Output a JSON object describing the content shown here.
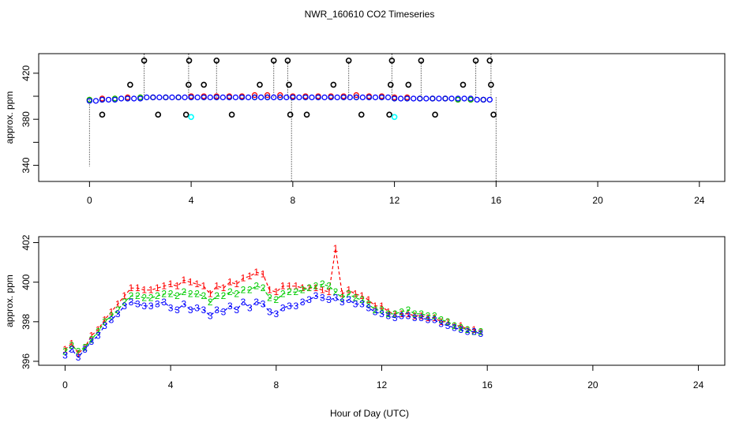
{
  "title": "NWR_160610  CO2 Timeseries",
  "xlabel": "Hour of Day (UTC)",
  "colors": {
    "s1": "#ff0000",
    "s2": "#00cc00",
    "s3": "#0000ff",
    "flag": "#000000",
    "cyan": "#00ffff"
  },
  "chart_data": [
    {
      "type": "scatter",
      "title": "",
      "xlabel": "",
      "ylabel": "approx. ppm",
      "xlim": [
        -2,
        25
      ],
      "ylim": [
        326,
        437
      ],
      "xticks": [
        0,
        4,
        8,
        12,
        16,
        20,
        24
      ],
      "yticks": [
        340,
        360,
        380,
        400,
        420
      ],
      "ytick_labels": [
        "340",
        "",
        "380",
        "",
        "420"
      ],
      "baseline": 399,
      "series": [
        {
          "name": "1",
          "style": "point",
          "x": [
            0,
            0.5,
            1,
            1.5,
            2,
            2.5,
            3,
            3.5,
            4,
            4.5,
            5,
            5.5,
            6,
            6.5,
            7,
            7.5,
            8,
            8.5,
            9,
            9.5,
            10,
            10.5,
            11,
            11.5,
            12,
            12.5,
            13,
            13.5,
            14,
            14.5,
            15,
            15.5
          ],
          "y": [
            397,
            398,
            398,
            399,
            399,
            399,
            399,
            399,
            400,
            400,
            400,
            400,
            400,
            401,
            401,
            401,
            400,
            400,
            400,
            400,
            400,
            401,
            400,
            400,
            399,
            399,
            398,
            398,
            398,
            397,
            397,
            397
          ]
        },
        {
          "name": "2",
          "style": "point",
          "x": [
            0,
            0.5,
            1,
            1.5,
            2,
            2.5,
            3,
            3.5,
            4,
            4.5,
            5,
            5.5,
            6,
            6.5,
            7,
            7.5,
            8,
            8.5,
            9,
            9.5,
            10,
            10.5,
            11,
            11.5,
            12,
            12.5,
            13,
            13.5,
            14,
            14.5,
            15,
            15.5
          ],
          "y": [
            397,
            397,
            398,
            398,
            399,
            399,
            399,
            399,
            399,
            399,
            399,
            399,
            399,
            399,
            399,
            399,
            399,
            399,
            399,
            399,
            399,
            399,
            399,
            399,
            398,
            398,
            398,
            398,
            398,
            397,
            397,
            397
          ]
        },
        {
          "name": "3",
          "style": "point",
          "x": [
            0,
            0.25,
            0.5,
            0.75,
            1,
            1.25,
            1.5,
            1.75,
            2,
            2.25,
            2.5,
            2.75,
            3,
            3.25,
            3.5,
            3.75,
            4,
            4.25,
            4.5,
            4.75,
            5,
            5.25,
            5.5,
            5.75,
            6,
            6.25,
            6.5,
            6.75,
            7,
            7.25,
            7.5,
            7.75,
            8,
            8.25,
            8.5,
            8.75,
            9,
            9.25,
            9.5,
            9.75,
            10,
            10.25,
            10.5,
            10.75,
            11,
            11.25,
            11.5,
            11.75,
            12,
            12.25,
            12.5,
            12.75,
            13,
            13.25,
            13.5,
            13.75,
            14,
            14.25,
            14.5,
            14.75,
            15,
            15.25,
            15.5,
            15.75
          ],
          "y": [
            396,
            396,
            397,
            397,
            397,
            398,
            398,
            398,
            398,
            399,
            399,
            399,
            399,
            399,
            399,
            399,
            399,
            399,
            399,
            399,
            399,
            399,
            399,
            399,
            399,
            399,
            399,
            399,
            399,
            399,
            399,
            399,
            399,
            399,
            399,
            399,
            399,
            399,
            399,
            399,
            399,
            399,
            399,
            399,
            399,
            399,
            399,
            399,
            398,
            398,
            398,
            398,
            398,
            398,
            398,
            398,
            398,
            398,
            398,
            398,
            398,
            397,
            397,
            397
          ]
        },
        {
          "name": "flagged",
          "style": "circle",
          "x": [
            0.5,
            1.6,
            2.15,
            2.7,
            3.8,
            3.9,
            3.92,
            4.5,
            5.0,
            5.6,
            6.7,
            7.25,
            7.8,
            7.85,
            7.9,
            8.55,
            9.6,
            10.2,
            10.7,
            11.8,
            11.85,
            11.9,
            12.55,
            13.05,
            13.6,
            14.7,
            15.2,
            15.75,
            15.8,
            15.9
          ],
          "y": [
            384,
            410,
            431,
            384,
            384,
            410,
            431,
            410,
            431,
            384,
            410,
            431,
            431,
            410,
            384,
            384,
            410,
            431,
            384,
            384,
            410,
            431,
            410,
            431,
            384,
            410,
            431,
            431,
            410,
            384
          ]
        },
        {
          "name": "cyan",
          "style": "circle",
          "x": [
            4.0,
            12.0
          ],
          "y": [
            382,
            382
          ]
        }
      ],
      "spikes": {
        "x": [
          0.0,
          2.15,
          3.9,
          5.0,
          7.25,
          7.8,
          7.95,
          10.2,
          11.9,
          13.05,
          15.2,
          15.8,
          16.0
        ],
        "y": [
          339,
          437,
          437,
          431,
          431,
          431,
          326,
          431,
          437,
          431,
          431,
          437,
          326
        ]
      }
    },
    {
      "type": "scatter",
      "title": "",
      "xlabel": "Hour of Day (UTC)",
      "ylabel": "approx. ppm",
      "xlim": [
        -1,
        25
      ],
      "ylim": [
        395.8,
        402.3
      ],
      "xticks": [
        0,
        4,
        8,
        12,
        16,
        20,
        24
      ],
      "yticks": [
        396,
        398,
        400,
        402
      ],
      "series": [
        {
          "name": "1",
          "x": [
            0.0,
            0.25,
            0.5,
            0.75,
            1.0,
            1.25,
            1.5,
            1.75,
            2.0,
            2.25,
            2.5,
            2.75,
            3.0,
            3.25,
            3.5,
            3.75,
            4.0,
            4.25,
            4.5,
            4.75,
            5.0,
            5.25,
            5.5,
            5.75,
            6.0,
            6.25,
            6.5,
            6.75,
            7.0,
            7.25,
            7.5,
            7.75,
            8.0,
            8.25,
            8.5,
            8.75,
            9.0,
            9.25,
            9.5,
            9.75,
            10.0,
            10.25,
            10.5,
            10.75,
            11.0,
            11.25,
            11.5,
            11.75,
            12.0,
            12.25,
            12.5,
            12.75,
            13.0,
            13.25,
            13.5,
            13.75,
            14.0,
            14.25,
            14.5,
            14.75,
            15.0,
            15.25,
            15.5,
            15.75
          ],
          "y": [
            396.6,
            396.9,
            396.4,
            396.7,
            397.3,
            397.6,
            398.1,
            398.5,
            398.9,
            399.3,
            399.7,
            399.7,
            399.6,
            399.6,
            399.7,
            399.8,
            399.9,
            399.8,
            400.1,
            400.0,
            399.9,
            399.8,
            399.4,
            399.8,
            399.7,
            400.0,
            399.9,
            400.2,
            400.3,
            400.5,
            400.4,
            399.6,
            399.5,
            399.8,
            399.8,
            399.8,
            399.7,
            399.7,
            399.7,
            399.6,
            399.5,
            401.7,
            399.4,
            399.6,
            399.4,
            399.3,
            399.1,
            398.8,
            398.8,
            398.5,
            398.4,
            398.4,
            398.4,
            398.3,
            398.3,
            398.2,
            398.2,
            398.0,
            398.0,
            397.8,
            397.8,
            397.6,
            397.6,
            397.5
          ]
        },
        {
          "name": "2",
          "x": [
            0.0,
            0.25,
            0.5,
            0.75,
            1.0,
            1.25,
            1.5,
            1.75,
            2.0,
            2.25,
            2.5,
            2.75,
            3.0,
            3.25,
            3.5,
            3.75,
            4.0,
            4.25,
            4.5,
            4.75,
            5.0,
            5.25,
            5.5,
            5.75,
            6.0,
            6.25,
            6.5,
            6.75,
            7.0,
            7.25,
            7.5,
            7.75,
            8.0,
            8.25,
            8.5,
            8.75,
            9.0,
            9.25,
            9.5,
            9.75,
            10.0,
            10.25,
            10.5,
            10.75,
            11.0,
            11.25,
            11.5,
            11.75,
            12.0,
            12.25,
            12.5,
            12.75,
            13.0,
            13.25,
            13.5,
            13.75,
            14.0,
            14.25,
            14.5,
            14.75,
            15.0,
            15.25,
            15.5,
            15.75
          ],
          "y": [
            396.5,
            396.8,
            396.5,
            396.7,
            397.1,
            397.5,
            398.0,
            398.3,
            398.6,
            399.0,
            399.3,
            399.3,
            399.2,
            399.2,
            399.3,
            399.4,
            399.4,
            399.3,
            399.5,
            399.4,
            399.4,
            399.3,
            399.0,
            399.3,
            399.3,
            399.5,
            399.4,
            399.6,
            399.6,
            399.8,
            399.7,
            399.2,
            399.1,
            399.4,
            399.5,
            399.5,
            399.6,
            399.7,
            399.8,
            399.9,
            399.8,
            399.5,
            399.2,
            399.4,
            399.2,
            399.1,
            398.9,
            398.6,
            398.6,
            398.4,
            398.4,
            398.5,
            398.6,
            398.4,
            398.4,
            398.3,
            398.3,
            398.1,
            398.0,
            397.8,
            397.7,
            397.6,
            397.5,
            397.5
          ]
        },
        {
          "name": "3",
          "x": [
            0.0,
            0.25,
            0.5,
            0.75,
            1.0,
            1.25,
            1.5,
            1.75,
            2.0,
            2.25,
            2.5,
            2.75,
            3.0,
            3.25,
            3.5,
            3.75,
            4.0,
            4.25,
            4.5,
            4.75,
            5.0,
            5.25,
            5.5,
            5.75,
            6.0,
            6.25,
            6.5,
            6.75,
            7.0,
            7.25,
            7.5,
            7.75,
            8.0,
            8.25,
            8.5,
            8.75,
            9.0,
            9.25,
            9.5,
            9.75,
            10.0,
            10.25,
            10.5,
            10.75,
            11.0,
            11.25,
            11.5,
            11.75,
            12.0,
            12.25,
            12.5,
            12.75,
            13.0,
            13.25,
            13.5,
            13.75,
            14.0,
            14.25,
            14.5,
            14.75,
            15.0,
            15.25,
            15.5,
            15.75
          ],
          "y": [
            396.3,
            396.6,
            396.2,
            396.6,
            397.0,
            397.3,
            397.8,
            398.1,
            398.4,
            398.8,
            399.0,
            398.9,
            398.8,
            398.8,
            398.9,
            399.0,
            398.7,
            398.6,
            398.9,
            398.6,
            398.7,
            398.6,
            398.3,
            398.6,
            398.5,
            398.8,
            398.6,
            399.0,
            398.7,
            399.0,
            398.9,
            398.5,
            398.4,
            398.7,
            398.8,
            398.8,
            399.0,
            399.1,
            399.3,
            399.2,
            399.1,
            399.2,
            399.0,
            399.1,
            398.9,
            398.9,
            398.7,
            398.5,
            398.4,
            398.3,
            398.2,
            398.3,
            398.3,
            398.2,
            398.2,
            398.1,
            398.1,
            397.9,
            397.8,
            397.7,
            397.6,
            397.5,
            397.5,
            397.4
          ]
        }
      ]
    }
  ]
}
